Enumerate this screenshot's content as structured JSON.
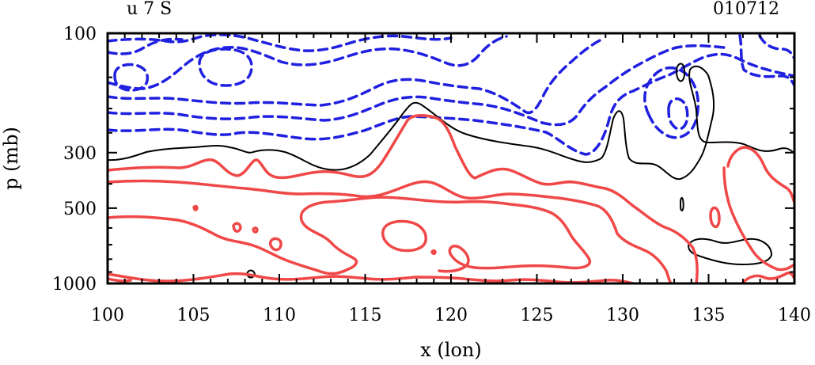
{
  "chart_data": {
    "type": "contour",
    "title_left": "u 7 S",
    "title_right": "010712",
    "xlabel": "x (lon)",
    "ylabel": "p (mb)",
    "xlim": [
      100,
      140
    ],
    "x_ticks": [
      "100",
      "105",
      "110",
      "115",
      "120",
      "125",
      "130",
      "135",
      "140"
    ],
    "ylim": [
      1000,
      100
    ],
    "y_ticks": [
      {
        "p": 100,
        "label": "100"
      },
      {
        "p": 300,
        "label": "300"
      },
      {
        "p": 500,
        "label": "500"
      },
      {
        "p": 1000,
        "label": "1000"
      }
    ],
    "colors": {
      "positive": "#f04848",
      "negative": "#2020e0",
      "zero": "#000000"
    }
  }
}
